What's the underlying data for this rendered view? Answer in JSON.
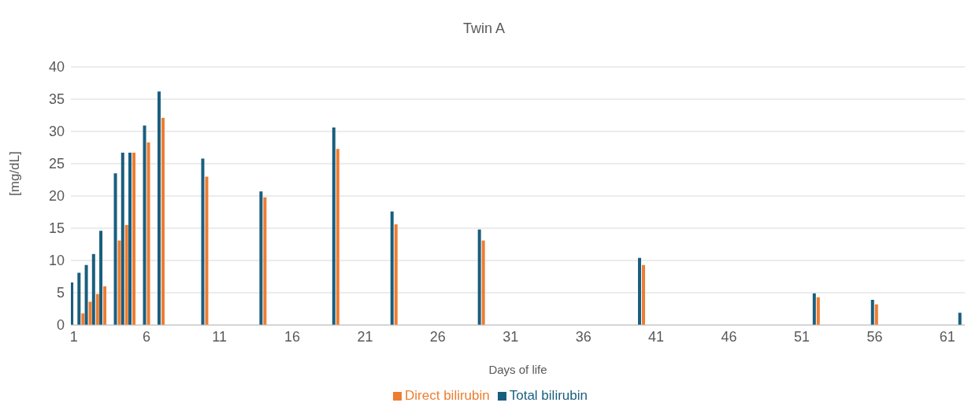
{
  "chart_data": {
    "type": "bar",
    "title": "Twin A",
    "xlabel": "Days of life",
    "ylabel": "[mg/dL]",
    "x": [
      1,
      1.5,
      2,
      2.5,
      3,
      4,
      4.5,
      5,
      6,
      7,
      10,
      14,
      19,
      23,
      29,
      40,
      52,
      56,
      62
    ],
    "series": [
      {
        "name": "Total bilirubin",
        "color": "#1a5e7e",
        "values": [
          6.6,
          8.1,
          9.3,
          11.0,
          14.6,
          23.5,
          26.7,
          26.7,
          30.9,
          36.2,
          25.8,
          20.7,
          30.6,
          17.6,
          14.8,
          10.4,
          4.9,
          3.9,
          1.9
        ]
      },
      {
        "name": "Direct bilirubin",
        "color": "#ed7d31",
        "values": [
          null,
          1.8,
          3.6,
          4.8,
          6.0,
          13.1,
          15.5,
          26.7,
          28.3,
          32.1,
          23.0,
          19.8,
          27.3,
          15.6,
          13.1,
          9.3,
          4.3,
          3.2,
          null
        ]
      }
    ],
    "xlim": [
      0.8,
      62.2
    ],
    "xticks": [
      1,
      6,
      11,
      16,
      21,
      26,
      31,
      36,
      41,
      46,
      51,
      56,
      61
    ],
    "ylim": [
      0,
      40
    ],
    "yticks": [
      0,
      5,
      10,
      15,
      20,
      25,
      30,
      35,
      40
    ],
    "grid": "y",
    "legend": "bottom"
  }
}
